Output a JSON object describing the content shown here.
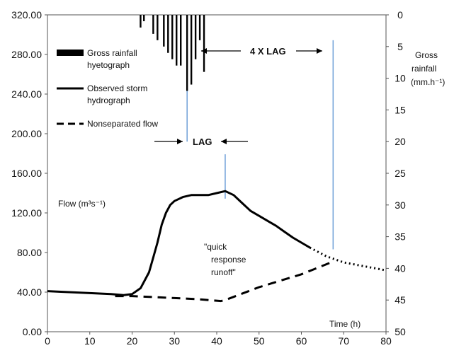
{
  "chart_data": {
    "type": "line",
    "xlabel": "Time (h)",
    "xlim": [
      0,
      80
    ],
    "x_ticks": [
      "0",
      "10",
      "20",
      "30",
      "40",
      "50",
      "60",
      "70",
      "80"
    ],
    "ylabel": "Flow (m³s⁻¹)",
    "ylim": [
      0,
      320
    ],
    "y_ticks": [
      "0.00",
      "40.00",
      "80.00",
      "120.00",
      "160.00",
      "200.00",
      "240.00",
      "280.00",
      "320.00"
    ],
    "y2label": [
      "Gross",
      "rainfall",
      "(mm.h⁻¹)"
    ],
    "y2lim": [
      50,
      0
    ],
    "y2_ticks": [
      "0",
      "5",
      "10",
      "15",
      "20",
      "25",
      "30",
      "35",
      "40",
      "45",
      "50"
    ],
    "legend_placement": "top-left",
    "series": [
      {
        "name": "Gross rainfall hyetograph",
        "kind": "hyetograph",
        "x": [
          22,
          22.8,
          25,
          26,
          27.5,
          28.5,
          29.5,
          30.5,
          31.5,
          33,
          34,
          35,
          36,
          37
        ],
        "values": [
          2,
          1,
          3,
          4,
          5,
          6,
          7,
          8,
          8,
          12,
          11,
          7,
          4,
          9
        ]
      },
      {
        "name": "Observed storm hydrograph",
        "x": [
          0,
          5,
          10,
          15,
          18,
          20,
          22,
          24,
          25,
          26,
          27,
          28,
          29,
          30,
          32,
          34,
          36,
          38,
          40,
          42,
          44,
          46,
          48,
          50,
          52,
          54,
          56,
          58,
          60,
          62
        ],
        "values": [
          41,
          40,
          39,
          38,
          37,
          38,
          44,
          60,
          75,
          90,
          108,
          120,
          128,
          132,
          136,
          138,
          138,
          138,
          140,
          142,
          138,
          130,
          122,
          117,
          112,
          107,
          101,
          95,
          90,
          85
        ]
      },
      {
        "name": "Observed storm hydrograph (extrapolated)",
        "x": [
          62,
          66,
          70,
          75,
          80
        ],
        "values": [
          85,
          76,
          70,
          66,
          62
        ]
      },
      {
        "name": "Nonseparated flow",
        "x": [
          16,
          20,
          25,
          30,
          35,
          41,
          42,
          50,
          60,
          67
        ],
        "values": [
          36,
          36,
          35,
          34,
          33,
          31,
          32,
          45,
          58,
          70
        ]
      }
    ],
    "annotations": {
      "lag_label": "LAG",
      "four_lag_label": "4 X LAG",
      "quick_response_lines": [
        "\"quick",
        "response",
        "runoff\""
      ],
      "lag_markers_x": [
        33,
        42,
        67.5
      ]
    }
  }
}
